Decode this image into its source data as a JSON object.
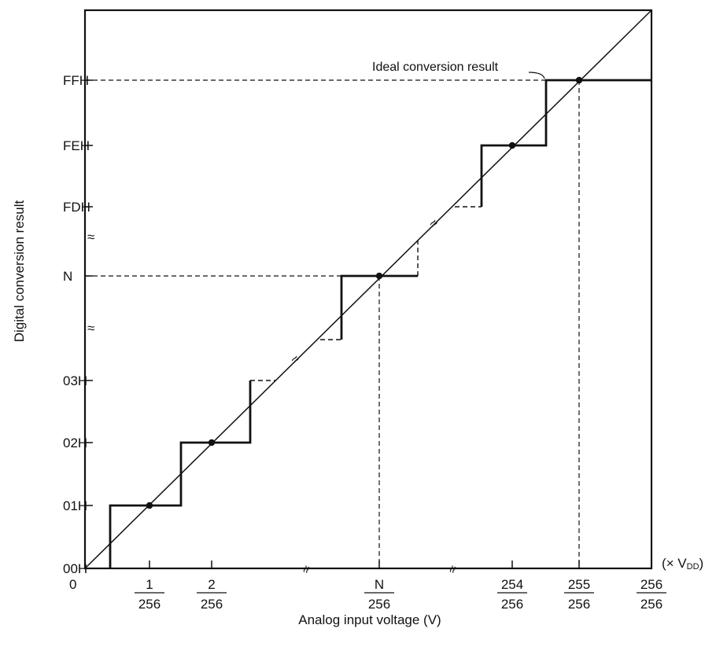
{
  "chart_data": {
    "type": "line",
    "xlabel": "Analog input voltage (V)",
    "ylabel": "Digital conversion result",
    "x_unit": "(× V",
    "x_unit_sub": "DD",
    "x_unit_close": ")",
    "origin_label": "0",
    "annotation": "Ideal conversion result",
    "x_ticks": [
      {
        "num": "1",
        "den": "256",
        "value": 1
      },
      {
        "num": "2",
        "den": "256",
        "value": 2
      },
      {
        "num": "N",
        "den": "256",
        "value": "N"
      },
      {
        "num": "254",
        "den": "256",
        "value": 254
      },
      {
        "num": "255",
        "den": "256",
        "value": 255
      },
      {
        "num": "256",
        "den": "256",
        "value": 256
      }
    ],
    "y_ticks": [
      "00H",
      "01H",
      "02H",
      "03H",
      "N",
      "FDH",
      "FEH",
      "FFH"
    ],
    "break_marks": "≈",
    "series": [
      {
        "name": "Ideal conversion result",
        "style": "solid-thin",
        "x": [
          "0",
          "256/256"
        ],
        "y": [
          "0",
          "256/256"
        ]
      },
      {
        "style": "solid-thick-step",
        "x": [
          "0.5/256",
          "1.5/256",
          "2.5/256"
        ],
        "y": [
          "00H→01H",
          "01H→02H",
          "02H→03H"
        ]
      },
      {
        "style": "solid-thick-step",
        "x": [
          "(N-0.5)/256",
          "(N+0.5)/256"
        ],
        "y": [
          "→N",
          "N"
        ]
      },
      {
        "style": "solid-thick-step",
        "x": [
          "252.5/256",
          "253.5/256",
          "254.5/256"
        ],
        "y": [
          "FDH→FEH",
          "FEH→FFH",
          "FFH"
        ]
      }
    ],
    "ideal_points": [
      "1/256",
      "2/256",
      "N/256",
      "254/256",
      "255/256"
    ],
    "grid": false
  }
}
